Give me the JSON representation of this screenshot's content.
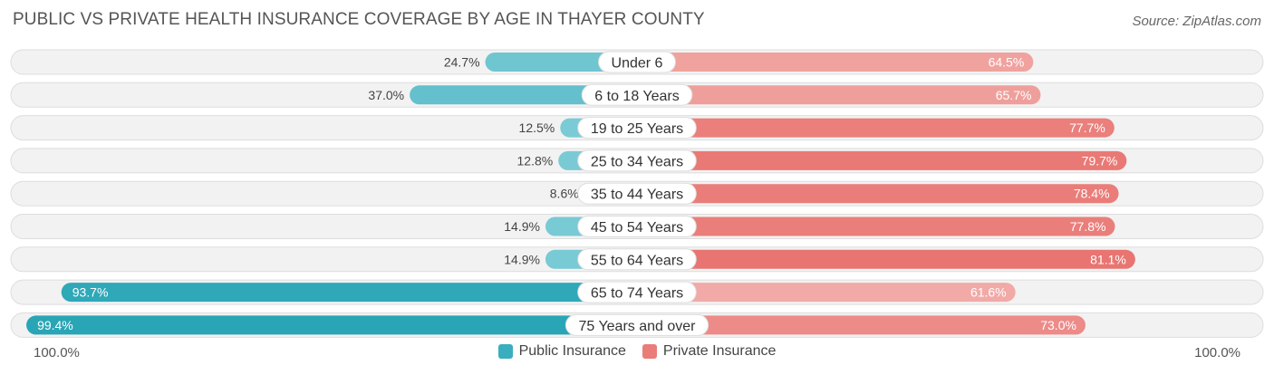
{
  "header": {
    "title": "PUBLIC VS PRIVATE HEALTH INSURANCE COVERAGE BY AGE IN THAYER COUNTY",
    "source": "Source: ZipAtlas.com"
  },
  "axis": {
    "left_label": "100.0%",
    "right_label": "100.0%"
  },
  "legend": [
    {
      "label": "Public Insurance",
      "color": "#3aaebe"
    },
    {
      "label": "Private Insurance",
      "color": "#ea7d7a"
    }
  ],
  "chart_data": {
    "type": "bar",
    "orientation": "horizontal-diverging",
    "title": "PUBLIC VS PRIVATE HEALTH INSURANCE COVERAGE BY AGE IN THAYER COUNTY",
    "categories": [
      "Under 6",
      "6 to 18 Years",
      "19 to 25 Years",
      "25 to 34 Years",
      "35 to 44 Years",
      "45 to 54 Years",
      "55 to 64 Years",
      "65 to 74 Years",
      "75 Years and over"
    ],
    "series": [
      {
        "name": "Public Insurance",
        "values": [
          24.7,
          37.0,
          12.5,
          12.8,
          8.6,
          14.9,
          14.9,
          93.7,
          99.4
        ],
        "labels": [
          "24.7%",
          "37.0%",
          "12.5%",
          "12.8%",
          "8.6%",
          "14.9%",
          "14.9%",
          "93.7%",
          "99.4%"
        ]
      },
      {
        "name": "Private Insurance",
        "values": [
          64.5,
          65.7,
          77.7,
          79.7,
          78.4,
          77.8,
          81.1,
          61.6,
          73.0
        ],
        "labels": [
          "64.5%",
          "65.7%",
          "77.7%",
          "79.7%",
          "78.4%",
          "77.8%",
          "81.1%",
          "61.6%",
          "73.0%"
        ]
      }
    ],
    "xlim": [
      -100,
      100
    ],
    "legend_position": "bottom-center"
  }
}
